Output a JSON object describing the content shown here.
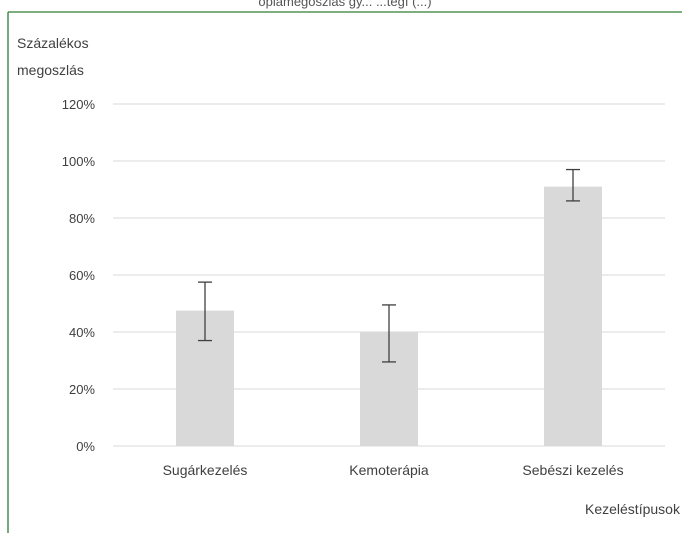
{
  "header": {
    "cropped_title": "ópiamegoszlás gy... ...tegí (...)"
  },
  "chart_data": {
    "type": "bar",
    "title": "",
    "ylabel_lines": [
      "Százalékos",
      "megoszlás"
    ],
    "xlabel": "Kezeléstípusok",
    "categories": [
      "Sugárkezelés",
      "Kemoterápia",
      "Sebészi kezelés"
    ],
    "values": [
      47.5,
      40,
      91
    ],
    "error_bars": [
      {
        "low": 37,
        "high": 57.5
      },
      {
        "low": 29.5,
        "high": 49.5
      },
      {
        "low": 86,
        "high": 97
      }
    ],
    "ylim": [
      0,
      120
    ],
    "yticks": [
      0,
      20,
      40,
      60,
      80,
      100,
      120
    ],
    "ytick_labels": [
      "0%",
      "20%",
      "40%",
      "60%",
      "80%",
      "100%",
      "120%"
    ],
    "grid": true,
    "bar_color": "#d9d9d9",
    "error_color": "#404040",
    "grid_color": "#d9d9d9",
    "frame_color": "#2e7d32"
  }
}
